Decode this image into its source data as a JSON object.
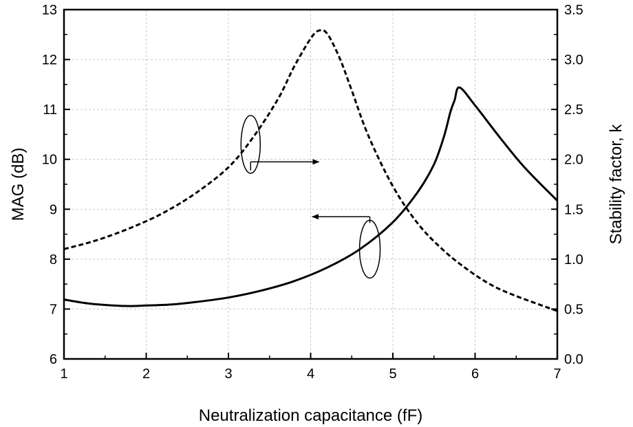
{
  "chart_data": {
    "type": "line",
    "title": "",
    "xlabel": "Neutralization capacitance (fF)",
    "ylabel_left": "MAG (dB)",
    "ylabel_right": "Stability factor, k",
    "xlim": [
      1,
      7
    ],
    "ylim_left": [
      6,
      13
    ],
    "ylim_right": [
      0.0,
      3.5
    ],
    "x_ticks": [
      "1",
      "2",
      "3",
      "4",
      "5",
      "6",
      "7"
    ],
    "y_left_ticks": [
      "6",
      "7",
      "8",
      "9",
      "10",
      "11",
      "12",
      "13"
    ],
    "y_right_ticks": [
      "0.0",
      "0.5",
      "1.0",
      "1.5",
      "2.0",
      "2.5",
      "3.0",
      "3.5"
    ],
    "grid": true,
    "series": [
      {
        "name": "MAG",
        "axis": "left",
        "style": "solid",
        "color": "#000000",
        "x": [
          1.0,
          1.3,
          1.6,
          1.8,
          2.0,
          2.3,
          2.6,
          3.0,
          3.4,
          3.8,
          4.2,
          4.6,
          5.0,
          5.3,
          5.5,
          5.62,
          5.7,
          5.75,
          5.81,
          6.0,
          6.3,
          6.6,
          7.0
        ],
        "y": [
          7.19,
          7.11,
          7.07,
          7.06,
          7.07,
          7.09,
          7.14,
          7.23,
          7.37,
          7.56,
          7.83,
          8.2,
          8.74,
          9.34,
          9.9,
          10.45,
          10.95,
          11.18,
          11.44,
          11.08,
          10.44,
          9.84,
          9.17
        ]
      },
      {
        "name": "Stability factor k",
        "axis": "right",
        "style": "dashed",
        "color": "#000000",
        "x": [
          1.0,
          1.4,
          1.8,
          2.2,
          2.6,
          3.0,
          3.3,
          3.6,
          3.8,
          4.0,
          4.1,
          4.2,
          4.35,
          4.5,
          4.7,
          5.0,
          5.3,
          5.6,
          5.9,
          6.2,
          6.5,
          7.0
        ],
        "y": [
          1.1,
          1.19,
          1.31,
          1.46,
          1.66,
          1.92,
          2.22,
          2.6,
          2.93,
          3.21,
          3.29,
          3.26,
          3.02,
          2.69,
          2.24,
          1.73,
          1.36,
          1.1,
          0.9,
          0.74,
          0.63,
          0.48
        ]
      }
    ],
    "annotations": [
      {
        "type": "ellipse-arrow",
        "target": "Stability factor k",
        "arrow_direction": "right"
      },
      {
        "type": "ellipse-arrow",
        "target": "MAG",
        "arrow_direction": "left"
      }
    ]
  }
}
